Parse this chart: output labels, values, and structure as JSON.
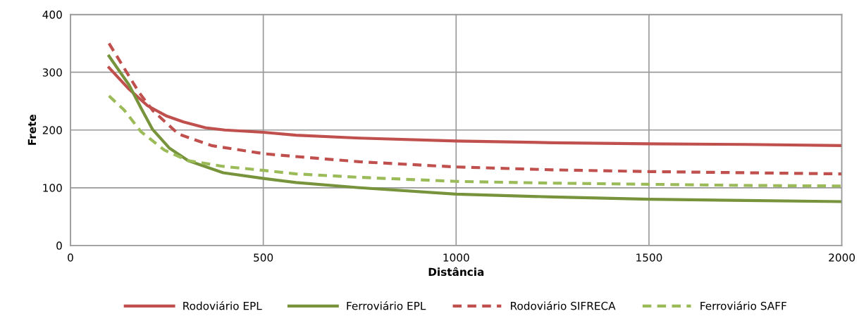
{
  "chart_data": {
    "type": "line",
    "xlabel": "Distância",
    "ylabel": "Frete",
    "xlim": [
      0,
      2000
    ],
    "ylim": [
      0,
      400
    ],
    "xticks": [
      0,
      500,
      1000,
      1500,
      2000
    ],
    "yticks": [
      0,
      100,
      200,
      300,
      400
    ],
    "grid": true,
    "legend": "bottom",
    "marker": "none",
    "series": [
      {
        "name": "Rodoviário EPL",
        "color": "#c0504d",
        "line_style": "solid",
        "x": [
          100,
          150,
          200,
          250,
          293,
          350,
          400,
          500,
          585,
          750,
          1000,
          1250,
          1500,
          1750,
          2000
        ],
        "values": [
          308,
          272,
          242,
          224,
          214,
          204,
          200,
          196,
          191,
          186,
          181,
          178,
          176,
          175,
          173
        ]
      },
      {
        "name": "Ferroviário EPL",
        "color": "#77933c",
        "line_style": "solid",
        "x": [
          100,
          152,
          183,
          213,
          256,
          305,
          396,
          501,
          585,
          750,
          1000,
          1250,
          1500,
          1750,
          2000
        ],
        "values": [
          328,
          278,
          238,
          201,
          169,
          147,
          126,
          116,
          109,
          100,
          89,
          84,
          80,
          78,
          76
        ]
      },
      {
        "name": "Rodoviário SIFRECA",
        "color": "#c0504d",
        "line_style": "dashed",
        "x": [
          100,
          177,
          213,
          280,
          366,
          501,
          585,
          750,
          1000,
          1250,
          1500,
          1750,
          2000
        ],
        "values": [
          350,
          266,
          234,
          193,
          173,
          159,
          154,
          145,
          136,
          131,
          128,
          126,
          124
        ]
      },
      {
        "name": "Ferroviário SAFF",
        "color": "#9bbb59",
        "line_style": "dashed",
        "x": [
          100,
          140,
          183,
          244,
          305,
          396,
          501,
          585,
          750,
          1000,
          1250,
          1500,
          1750,
          2000
        ],
        "values": [
          259,
          234,
          197,
          165,
          147,
          137,
          130,
          124,
          118,
          111,
          108,
          106,
          104,
          103
        ]
      }
    ]
  }
}
